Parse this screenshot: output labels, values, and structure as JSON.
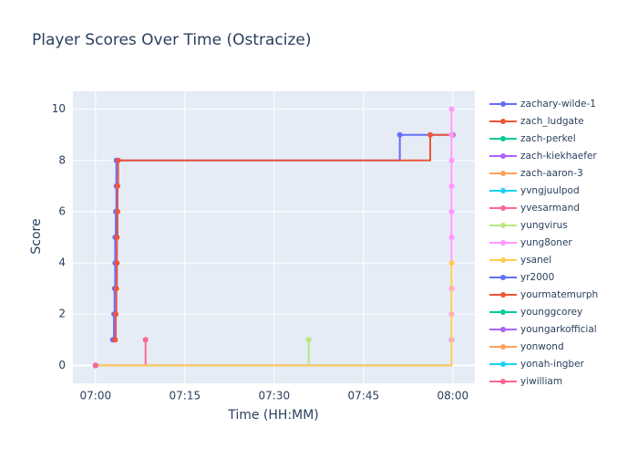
{
  "chart_data": {
    "type": "line",
    "line_shape": "hv",
    "markers": true,
    "title": "Player Scores Over Time (Ostracize)",
    "x_label": "Time (HH:MM)",
    "y_label": "Score",
    "xlim": [
      -3.8,
      63.7
    ],
    "ylim": [
      -0.7,
      10.7
    ],
    "xticks": [
      {
        "value": 0,
        "label": "07:00"
      },
      {
        "value": 15,
        "label": "07:15"
      },
      {
        "value": 30,
        "label": "07:30"
      },
      {
        "value": 45,
        "label": "07:45"
      },
      {
        "value": 60,
        "label": "08:00"
      }
    ],
    "yticks": [
      0,
      2,
      4,
      6,
      8,
      10
    ],
    "grid": true,
    "legend": "right",
    "series": [
      {
        "name": "zachary-wilde-1",
        "color": "#636efa",
        "x": [
          2.9,
          3.1,
          3.2,
          3.3,
          3.3,
          3.4,
          3.5,
          3.5,
          51.1,
          60
        ],
        "values": [
          1,
          2,
          3,
          4,
          5,
          6,
          7,
          8,
          9,
          9
        ]
      },
      {
        "name": "zach_ludgate",
        "color": "#ef553b",
        "x": [
          3.3,
          3.4,
          3.5,
          3.6,
          3.6,
          3.7,
          3.7,
          3.8,
          56.2,
          59.9
        ],
        "values": [
          1,
          2,
          3,
          4,
          5,
          6,
          7,
          8,
          9,
          9
        ]
      },
      {
        "name": "zach-perkel",
        "color": "#00cc96",
        "x": [
          0,
          59.8
        ],
        "values": [
          0,
          1
        ]
      },
      {
        "name": "zach-kiekhaefer",
        "color": "#ab63fa",
        "x": [
          0
        ],
        "values": [
          0
        ]
      },
      {
        "name": "zach-aaron-3",
        "color": "#ffa15a",
        "x": [
          0
        ],
        "values": [
          0
        ]
      },
      {
        "name": "yvngjuulpod",
        "color": "#19d3f3",
        "x": [
          0
        ],
        "values": [
          0
        ]
      },
      {
        "name": "yvesarmand",
        "color": "#ff6692",
        "x": [
          0,
          8.4
        ],
        "values": [
          0,
          1
        ]
      },
      {
        "name": "yungvirus",
        "color": "#b6e880",
        "x": [
          0,
          35.8
        ],
        "values": [
          0,
          1
        ]
      },
      {
        "name": "yung8oner",
        "color": "#ff97ff",
        "x": [
          0,
          59.8,
          59.8,
          59.8,
          59.8,
          59.8,
          59.8,
          59.8,
          59.8,
          59.8,
          59.8
        ],
        "values": [
          0,
          1,
          2,
          3,
          4,
          5,
          6,
          7,
          8,
          9,
          10
        ]
      },
      {
        "name": "ysanel",
        "color": "#fecb52",
        "x": [
          0,
          59.8
        ],
        "values": [
          0,
          4
        ]
      },
      {
        "name": "yr2000",
        "color": "#636efa",
        "x": [
          0
        ],
        "values": [
          0
        ]
      },
      {
        "name": "yourmatemurph",
        "color": "#ef553b",
        "x": [
          0
        ],
        "values": [
          0
        ]
      },
      {
        "name": "younggcorey",
        "color": "#00cc96",
        "x": [
          0
        ],
        "values": [
          0
        ]
      },
      {
        "name": "youngarkofficial",
        "color": "#ab63fa",
        "x": [
          0
        ],
        "values": [
          0
        ]
      },
      {
        "name": "yonwond",
        "color": "#ffa15a",
        "x": [
          0
        ],
        "values": [
          0
        ]
      },
      {
        "name": "yonah-ingber",
        "color": "#19d3f3",
        "x": [
          0
        ],
        "values": [
          0
        ]
      },
      {
        "name": "yiwilliam",
        "color": "#ff6692",
        "x": [
          0
        ],
        "values": [
          0
        ]
      }
    ]
  }
}
